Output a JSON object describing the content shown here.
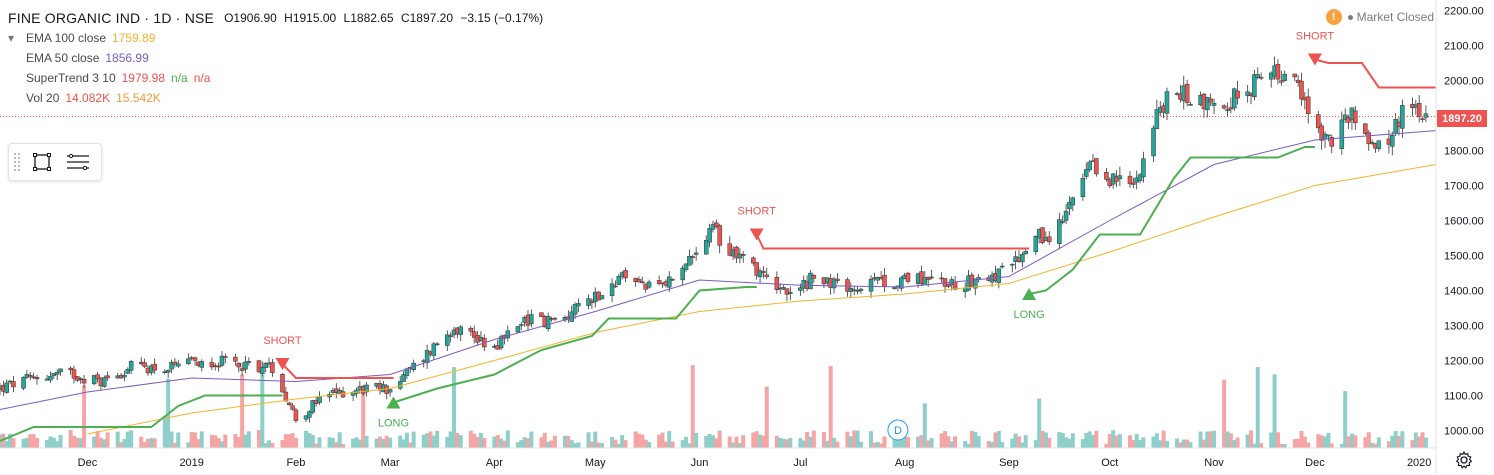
{
  "header": {
    "symbol": "FINE ORGANIC IND · 1D · NSE",
    "open": "O1906.90",
    "high": "H1915.00",
    "low": "L1882.65",
    "close": "C1897.20",
    "change": "−3.15 (−0.17%)"
  },
  "indicators": {
    "ema100": {
      "label": "EMA 100 close",
      "value": "1759.89",
      "color": "#f2b52a"
    },
    "ema50": {
      "label": "EMA 50 close",
      "value": "1856.99",
      "color": "#7b5bc2"
    },
    "supertrend": {
      "label": "SuperTrend 3 10",
      "value": "1979.98",
      "na1": "n/a",
      "na2": "n/a"
    },
    "volume": {
      "label": "Vol 20",
      "value1": "14.082K",
      "value2": "15.542K"
    }
  },
  "status": {
    "warning": "!",
    "market_state": "Market Closed"
  },
  "current_price_label": "1897.20",
  "icons": {
    "rectangle_tool": "rectangle-icon",
    "menu_tool": "lines-menu-icon",
    "settings": "gear-icon"
  },
  "chart_data": {
    "type": "candlestick",
    "title": "FINE ORGANIC IND · 1D · NSE",
    "xlabel": "",
    "ylabel": "",
    "ylim": [
      950,
      2230
    ],
    "grid": false,
    "legend_placement": "top-left",
    "colors": {
      "up": "#26a69a",
      "down": "#ef5350",
      "ema100": "#f2b52a",
      "ema50": "#7b5bc2",
      "supertrend_up": "#4caf50",
      "supertrend_down": "#ef5350",
      "last_price_line": "#ef5350",
      "vol_up": "#8ecfca",
      "vol_down": "#f4a5a4"
    },
    "y_ticks": [
      1000,
      1100,
      1200,
      1300,
      1400,
      1500,
      1600,
      1700,
      1800,
      1900,
      2000,
      2100,
      2200
    ],
    "y_tick_labels": [
      "1000.00",
      "1100.00",
      "1200.00",
      "1300.00",
      "1400.00",
      "1500.00",
      "1600.00",
      "1700.00",
      "1800.00",
      "1900.00",
      "2000.00",
      "2100.00",
      "2200.00"
    ],
    "x_ticks": [
      {
        "label": "Dec",
        "date": "2018-12-01"
      },
      {
        "label": "2019",
        "date": "2019-01-01"
      },
      {
        "label": "Feb",
        "date": "2019-02-01"
      },
      {
        "label": "Mar",
        "date": "2019-03-01"
      },
      {
        "label": "Apr",
        "date": "2019-04-01"
      },
      {
        "label": "May",
        "date": "2019-05-01"
      },
      {
        "label": "Jun",
        "date": "2019-06-01"
      },
      {
        "label": "Jul",
        "date": "2019-07-01"
      },
      {
        "label": "Aug",
        "date": "2019-08-01"
      },
      {
        "label": "Sep",
        "date": "2019-09-01"
      },
      {
        "label": "Oct",
        "date": "2019-10-01"
      },
      {
        "label": "Nov",
        "date": "2019-11-01"
      },
      {
        "label": "Dec",
        "date": "2019-12-01"
      },
      {
        "label": "2020",
        "date": "2020-01-01"
      }
    ],
    "x_range": [
      "2018-11-05",
      "2020-01-06"
    ],
    "close_path": [
      [
        "2018-11-05",
        1120
      ],
      [
        "2018-11-15",
        1150
      ],
      [
        "2018-11-25",
        1165
      ],
      [
        "2018-12-05",
        1140
      ],
      [
        "2018-12-15",
        1185
      ],
      [
        "2018-12-25",
        1175
      ],
      [
        "2019-01-05",
        1200
      ],
      [
        "2019-01-15",
        1190
      ],
      [
        "2019-01-25",
        1180
      ],
      [
        "2019-02-01",
        1035
      ],
      [
        "2019-02-10",
        1100
      ],
      [
        "2019-02-20",
        1120
      ],
      [
        "2019-03-01",
        1120
      ],
      [
        "2019-03-10",
        1200
      ],
      [
        "2019-03-20",
        1300
      ],
      [
        "2019-04-01",
        1240
      ],
      [
        "2019-04-10",
        1320
      ],
      [
        "2019-04-20",
        1310
      ],
      [
        "2019-04-30",
        1380
      ],
      [
        "2019-05-10",
        1440
      ],
      [
        "2019-05-20",
        1400
      ],
      [
        "2019-05-30",
        1490
      ],
      [
        "2019-06-05",
        1570
      ],
      [
        "2019-06-10",
        1520
      ],
      [
        "2019-06-20",
        1450
      ],
      [
        "2019-06-28",
        1380
      ],
      [
        "2019-07-05",
        1440
      ],
      [
        "2019-07-15",
        1400
      ],
      [
        "2019-07-25",
        1420
      ],
      [
        "2019-08-05",
        1440
      ],
      [
        "2019-08-15",
        1420
      ],
      [
        "2019-08-25",
        1440
      ],
      [
        "2019-09-02",
        1460
      ],
      [
        "2019-09-08",
        1550
      ],
      [
        "2019-09-15",
        1560
      ],
      [
        "2019-09-25",
        1750
      ],
      [
        "2019-10-01",
        1720
      ],
      [
        "2019-10-08",
        1700
      ],
      [
        "2019-10-15",
        1900
      ],
      [
        "2019-10-20",
        1970
      ],
      [
        "2019-11-01",
        1930
      ],
      [
        "2019-11-10",
        1960
      ],
      [
        "2019-11-18",
        2040
      ],
      [
        "2019-11-25",
        1990
      ],
      [
        "2019-12-01",
        1880
      ],
      [
        "2019-12-05",
        1820
      ],
      [
        "2019-12-12",
        1900
      ],
      [
        "2019-12-18",
        1820
      ],
      [
        "2019-12-24",
        1830
      ],
      [
        "2019-12-28",
        1960
      ],
      [
        "2020-01-03",
        1897.2
      ]
    ],
    "ema100": [
      [
        "2018-12-01",
        990
      ],
      [
        "2019-01-01",
        1050
      ],
      [
        "2019-02-01",
        1090
      ],
      [
        "2019-03-01",
        1120
      ],
      [
        "2019-04-01",
        1200
      ],
      [
        "2019-05-01",
        1280
      ],
      [
        "2019-06-01",
        1340
      ],
      [
        "2019-07-01",
        1370
      ],
      [
        "2019-08-01",
        1390
      ],
      [
        "2019-09-01",
        1420
      ],
      [
        "2019-10-01",
        1510
      ],
      [
        "2019-11-01",
        1610
      ],
      [
        "2019-12-01",
        1700
      ],
      [
        "2020-01-06",
        1759.89
      ]
    ],
    "ema50": [
      [
        "2018-11-05",
        1060
      ],
      [
        "2018-12-01",
        1110
      ],
      [
        "2019-01-01",
        1150
      ],
      [
        "2019-02-01",
        1140
      ],
      [
        "2019-03-01",
        1160
      ],
      [
        "2019-04-01",
        1260
      ],
      [
        "2019-05-01",
        1340
      ],
      [
        "2019-06-01",
        1430
      ],
      [
        "2019-07-01",
        1415
      ],
      [
        "2019-08-01",
        1410
      ],
      [
        "2019-09-01",
        1440
      ],
      [
        "2019-10-01",
        1600
      ],
      [
        "2019-11-01",
        1760
      ],
      [
        "2019-12-01",
        1830
      ],
      [
        "2020-01-06",
        1856.99
      ]
    ],
    "supertrend_segments": [
      {
        "trend": "up",
        "points": [
          [
            "2018-11-05",
            970
          ],
          [
            "2018-11-15",
            1010
          ],
          [
            "2018-12-20",
            1010
          ],
          [
            "2018-12-28",
            1070
          ],
          [
            "2019-01-05",
            1100
          ],
          [
            "2019-01-28",
            1100
          ]
        ]
      },
      {
        "trend": "down",
        "points": [
          [
            "2019-01-28",
            1190
          ],
          [
            "2019-02-01",
            1150
          ],
          [
            "2019-03-02",
            1150
          ]
        ]
      },
      {
        "trend": "up",
        "points": [
          [
            "2019-03-02",
            1080
          ],
          [
            "2019-03-15",
            1120
          ],
          [
            "2019-04-01",
            1160
          ],
          [
            "2019-04-15",
            1230
          ],
          [
            "2019-04-30",
            1270
          ],
          [
            "2019-05-05",
            1320
          ],
          [
            "2019-05-25",
            1320
          ],
          [
            "2019-06-01",
            1400
          ],
          [
            "2019-06-15",
            1410
          ],
          [
            "2019-06-18",
            1410
          ]
        ]
      },
      {
        "trend": "down",
        "points": [
          [
            "2019-06-18",
            1560
          ],
          [
            "2019-06-20",
            1520
          ],
          [
            "2019-09-07",
            1520
          ]
        ]
      },
      {
        "trend": "up",
        "points": [
          [
            "2019-09-07",
            1390
          ],
          [
            "2019-09-12",
            1400
          ],
          [
            "2019-09-20",
            1460
          ],
          [
            "2019-09-28",
            1560
          ],
          [
            "2019-10-10",
            1560
          ],
          [
            "2019-10-20",
            1720
          ],
          [
            "2019-10-25",
            1780
          ],
          [
            "2019-11-20",
            1780
          ],
          [
            "2019-11-28",
            1810
          ],
          [
            "2019-12-01",
            1810
          ]
        ]
      },
      {
        "trend": "down",
        "points": [
          [
            "2019-12-01",
            2060
          ],
          [
            "2019-12-05",
            2050
          ],
          [
            "2019-12-15",
            2050
          ],
          [
            "2019-12-20",
            1980
          ],
          [
            "2020-01-06",
            1980
          ]
        ]
      }
    ],
    "signals": [
      {
        "type": "SHORT",
        "label": "SHORT",
        "date": "2019-01-28",
        "price": 1190
      },
      {
        "type": "LONG",
        "label": "LONG",
        "date": "2019-03-02",
        "price": 1080
      },
      {
        "type": "SHORT",
        "label": "SHORT",
        "date": "2019-06-18",
        "price": 1560
      },
      {
        "type": "LONG",
        "label": "LONG",
        "date": "2019-09-07",
        "price": 1390
      },
      {
        "type": "SHORT",
        "label": "SHORT",
        "date": "2019-12-01",
        "price": 2060
      }
    ],
    "last_price": 1897.2,
    "dividend_marker": {
      "label": "D",
      "date": "2019-07-30"
    }
  }
}
